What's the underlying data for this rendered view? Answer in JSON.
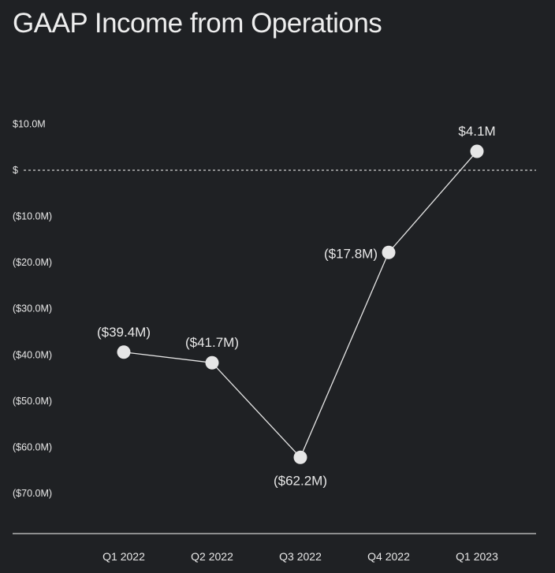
{
  "chart_data": {
    "type": "line",
    "title": "GAAP Income from Operations",
    "xlabel": "",
    "ylabel": "",
    "categories": [
      "Q1 2022",
      "Q2 2022",
      "Q3 2022",
      "Q4 2022",
      "Q1 2023"
    ],
    "series": [
      {
        "name": "GAAP Income from Operations ($M)",
        "values": [
          -39.4,
          -41.7,
          -62.2,
          -17.8,
          4.1
        ],
        "labels": [
          "($39.4M)",
          "($41.7M)",
          "($62.2M)",
          "($17.8M)",
          "$4.1M"
        ],
        "label_positions": [
          "above",
          "above",
          "below",
          "left",
          "above"
        ]
      }
    ],
    "ylim": [
      -78,
      18
    ],
    "yticks": [
      10,
      0,
      -10,
      -20,
      -30,
      -40,
      -50,
      -60,
      -70
    ],
    "ytick_labels": [
      "$10.0M",
      "$",
      "($10.0M)",
      "($20.0M)",
      "($30.0M)",
      "($40.0M)",
      "($50.0M)",
      "($60.0M)",
      "($70.0M)"
    ],
    "zero_line": "dotted",
    "grid": false,
    "legend": "none"
  },
  "colors": {
    "background": "#1f2124",
    "text": "#e8e8e8",
    "line": "#e6e6e6",
    "marker": "#e6e6e6",
    "axis": "#cfcfcf"
  }
}
